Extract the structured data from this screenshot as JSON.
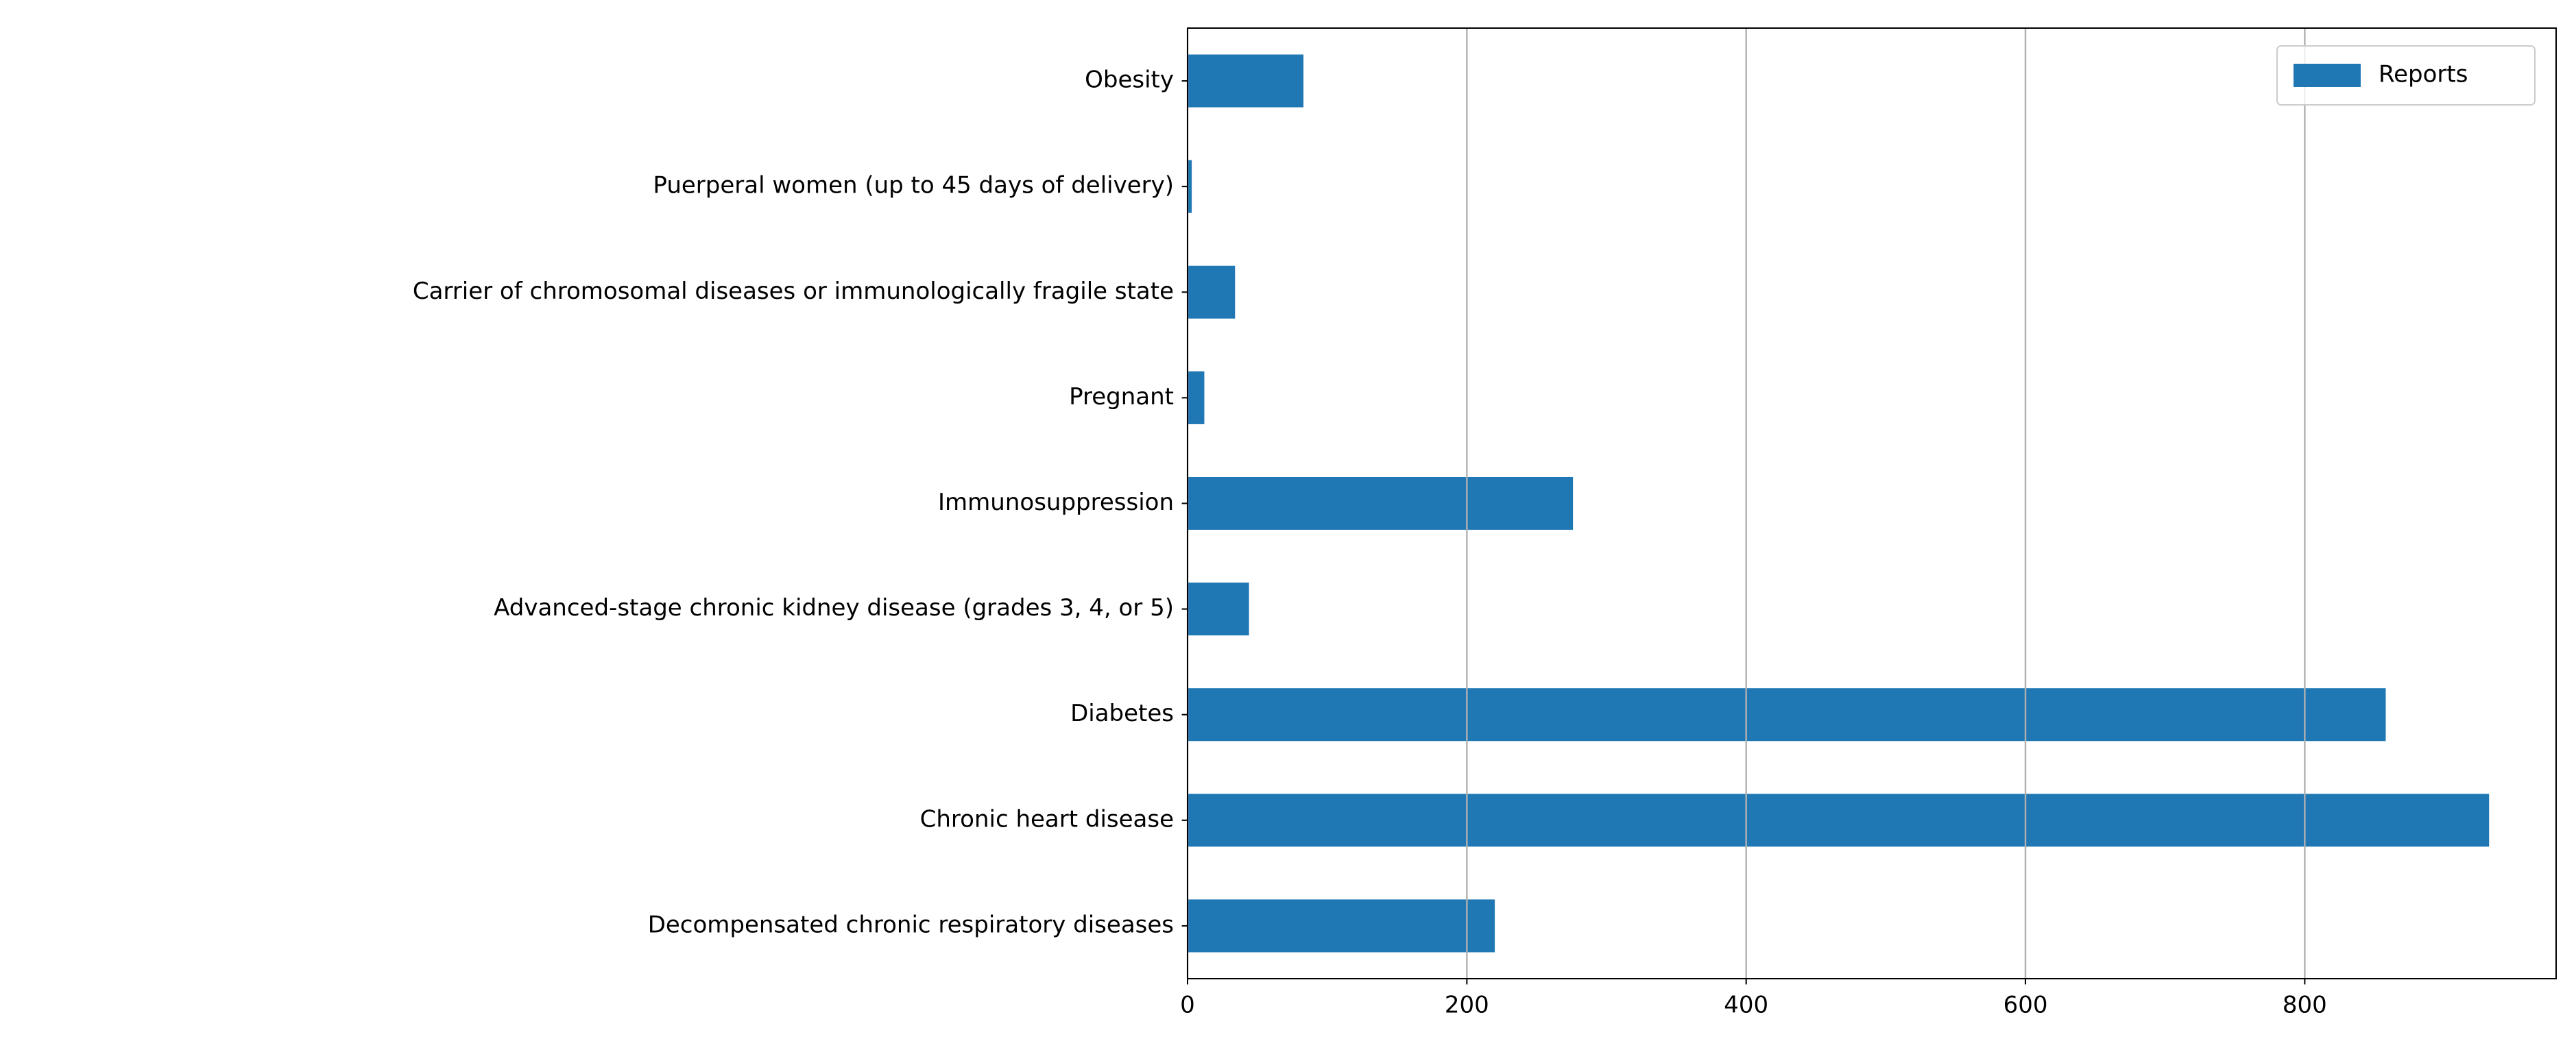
{
  "chart_data": {
    "type": "barh",
    "categories": [
      "Decompensated chronic respiratory diseases",
      "Chronic heart disease",
      "Diabetes",
      "Advanced-stage chronic kidney disease (grades 3, 4, or 5)",
      "Immunosuppression",
      "Pregnant",
      "Carrier of chromosomal diseases or immunologically fragile state",
      "Puerperal women (up to 45 days of delivery)",
      "Obesity"
    ],
    "series": [
      {
        "name": "Reports",
        "color": "#1f77b4",
        "values": [
          220,
          932,
          858,
          44,
          276,
          12,
          34,
          3,
          83
        ]
      }
    ],
    "xlim": [
      0,
      980
    ],
    "xticks": [
      0,
      200,
      400,
      600,
      800
    ],
    "grid": true,
    "legend": "upper right"
  }
}
